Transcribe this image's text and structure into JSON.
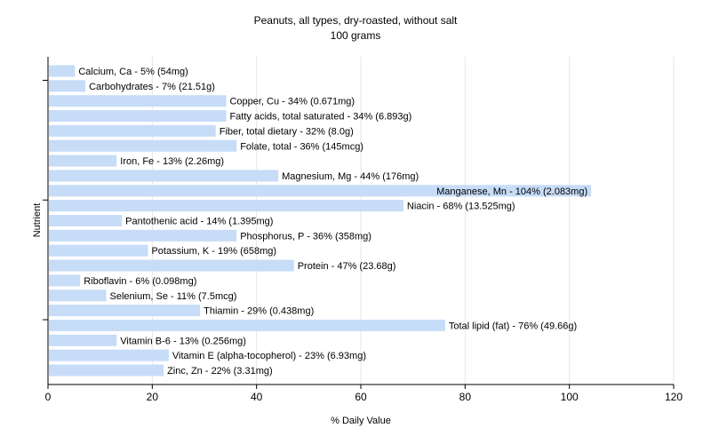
{
  "chart_data": {
    "type": "bar",
    "orientation": "horizontal",
    "title": "Peanuts, all types, dry-roasted, without salt",
    "subtitle": "100 grams",
    "xlabel": "% Daily Value",
    "ylabel": "Nutrient",
    "xlim": [
      0,
      120
    ],
    "xticks": [
      0,
      20,
      40,
      60,
      80,
      100,
      120
    ],
    "grid": true,
    "bar_color": "#c6dcf7",
    "grid_color": "#e6e6e6",
    "categories": [
      "Calcium, Ca",
      "Carbohydrates",
      "Copper, Cu",
      "Fatty acids, total saturated",
      "Fiber, total dietary",
      "Folate, total",
      "Iron, Fe",
      "Magnesium, Mg",
      "Manganese, Mn",
      "Niacin",
      "Pantothenic acid",
      "Phosphorus, P",
      "Potassium, K",
      "Protein",
      "Riboflavin",
      "Selenium, Se",
      "Thiamin",
      "Total lipid (fat)",
      "Vitamin B-6",
      "Vitamin E (alpha-tocopherol)",
      "Zinc, Zn"
    ],
    "values": [
      5,
      7,
      34,
      34,
      32,
      36,
      13,
      44,
      104,
      68,
      14,
      36,
      19,
      47,
      6,
      11,
      29,
      76,
      13,
      23,
      22
    ],
    "labels": [
      "Calcium, Ca - 5% (54mg)",
      "Carbohydrates - 7% (21.51g)",
      "Copper, Cu - 34% (0.671mg)",
      "Fatty acids, total saturated - 34% (6.893g)",
      "Fiber, total dietary - 32% (8.0g)",
      "Folate, total - 36% (145mcg)",
      "Iron, Fe - 13% (2.26mg)",
      "Magnesium, Mg - 44% (176mg)",
      "Manganese, Mn - 104% (2.083mg)",
      "Niacin - 68% (13.525mg)",
      "Pantothenic acid - 14% (1.395mg)",
      "Phosphorus, P - 36% (358mg)",
      "Potassium, K - 19% (658mg)",
      "Protein - 47% (23.68g)",
      "Riboflavin - 6% (0.098mg)",
      "Selenium, Se - 11% (7.5mcg)",
      "Thiamin - 29% (0.438mg)",
      "Total lipid (fat) - 76% (49.66g)",
      "Vitamin B-6 - 13% (0.256mg)",
      "Vitamin E (alpha-tocopherol) - 23% (6.93mg)",
      "Zinc, Zn - 22% (3.31mg)"
    ]
  }
}
